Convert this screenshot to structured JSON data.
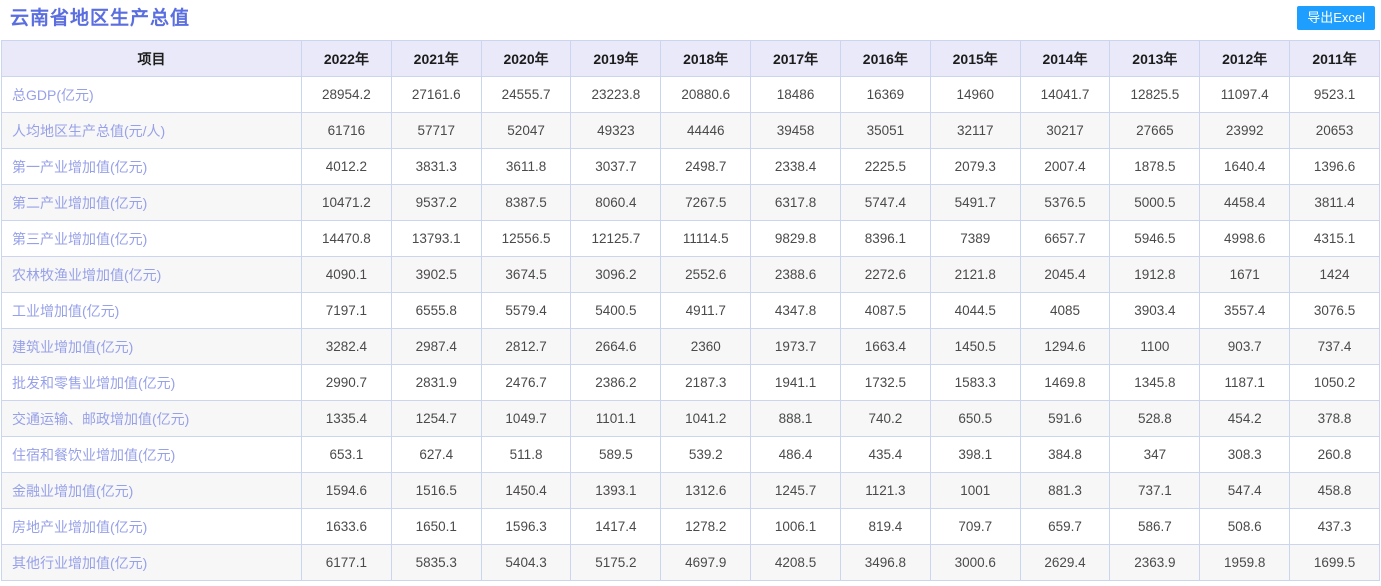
{
  "title": "云南省地区生产总值",
  "export_button_label": "导出Excel",
  "colors": {
    "title": "#5a6ee0",
    "row_label_link": "#97a1e8",
    "header_bg": "#e9e9f9",
    "grid_border": "#ccd5f0",
    "stripe_bg": "#f7f7f7",
    "export_button_bg": "#1e9fff",
    "export_button_text": "#ffffff"
  },
  "table": {
    "columns": [
      "项目",
      "2022年",
      "2021年",
      "2020年",
      "2019年",
      "2018年",
      "2017年",
      "2016年",
      "2015年",
      "2014年",
      "2013年",
      "2012年",
      "2011年"
    ],
    "rows": [
      {
        "label": "总GDP(亿元)",
        "values": [
          "28954.2",
          "27161.6",
          "24555.7",
          "23223.8",
          "20880.6",
          "18486",
          "16369",
          "14960",
          "14041.7",
          "12825.5",
          "11097.4",
          "9523.1"
        ]
      },
      {
        "label": "人均地区生产总值(元/人)",
        "values": [
          "61716",
          "57717",
          "52047",
          "49323",
          "44446",
          "39458",
          "35051",
          "32117",
          "30217",
          "27665",
          "23992",
          "20653"
        ]
      },
      {
        "label": "第一产业增加值(亿元)",
        "values": [
          "4012.2",
          "3831.3",
          "3611.8",
          "3037.7",
          "2498.7",
          "2338.4",
          "2225.5",
          "2079.3",
          "2007.4",
          "1878.5",
          "1640.4",
          "1396.6"
        ]
      },
      {
        "label": "第二产业增加值(亿元)",
        "values": [
          "10471.2",
          "9537.2",
          "8387.5",
          "8060.4",
          "7267.5",
          "6317.8",
          "5747.4",
          "5491.7",
          "5376.5",
          "5000.5",
          "4458.4",
          "3811.4"
        ]
      },
      {
        "label": "第三产业增加值(亿元)",
        "values": [
          "14470.8",
          "13793.1",
          "12556.5",
          "12125.7",
          "11114.5",
          "9829.8",
          "8396.1",
          "7389",
          "6657.7",
          "5946.5",
          "4998.6",
          "4315.1"
        ]
      },
      {
        "label": "农林牧渔业增加值(亿元)",
        "values": [
          "4090.1",
          "3902.5",
          "3674.5",
          "3096.2",
          "2552.6",
          "2388.6",
          "2272.6",
          "2121.8",
          "2045.4",
          "1912.8",
          "1671",
          "1424"
        ]
      },
      {
        "label": "工业增加值(亿元)",
        "values": [
          "7197.1",
          "6555.8",
          "5579.4",
          "5400.5",
          "4911.7",
          "4347.8",
          "4087.5",
          "4044.5",
          "4085",
          "3903.4",
          "3557.4",
          "3076.5"
        ]
      },
      {
        "label": "建筑业增加值(亿元)",
        "values": [
          "3282.4",
          "2987.4",
          "2812.7",
          "2664.6",
          "2360",
          "1973.7",
          "1663.4",
          "1450.5",
          "1294.6",
          "1100",
          "903.7",
          "737.4"
        ]
      },
      {
        "label": "批发和零售业增加值(亿元)",
        "values": [
          "2990.7",
          "2831.9",
          "2476.7",
          "2386.2",
          "2187.3",
          "1941.1",
          "1732.5",
          "1583.3",
          "1469.8",
          "1345.8",
          "1187.1",
          "1050.2"
        ]
      },
      {
        "label": "交通运输、邮政增加值(亿元)",
        "values": [
          "1335.4",
          "1254.7",
          "1049.7",
          "1101.1",
          "1041.2",
          "888.1",
          "740.2",
          "650.5",
          "591.6",
          "528.8",
          "454.2",
          "378.8"
        ]
      },
      {
        "label": "住宿和餐饮业增加值(亿元)",
        "values": [
          "653.1",
          "627.4",
          "511.8",
          "589.5",
          "539.2",
          "486.4",
          "435.4",
          "398.1",
          "384.8",
          "347",
          "308.3",
          "260.8"
        ]
      },
      {
        "label": "金融业增加值(亿元)",
        "values": [
          "1594.6",
          "1516.5",
          "1450.4",
          "1393.1",
          "1312.6",
          "1245.7",
          "1121.3",
          "1001",
          "881.3",
          "737.1",
          "547.4",
          "458.8"
        ]
      },
      {
        "label": "房地产业增加值(亿元)",
        "values": [
          "1633.6",
          "1650.1",
          "1596.3",
          "1417.4",
          "1278.2",
          "1006.1",
          "819.4",
          "709.7",
          "659.7",
          "586.7",
          "508.6",
          "437.3"
        ]
      },
      {
        "label": "其他行业增加值(亿元)",
        "values": [
          "6177.1",
          "5835.3",
          "5404.3",
          "5175.2",
          "4697.9",
          "4208.5",
          "3496.8",
          "3000.6",
          "2629.4",
          "2363.9",
          "1959.8",
          "1699.5"
        ]
      }
    ]
  }
}
